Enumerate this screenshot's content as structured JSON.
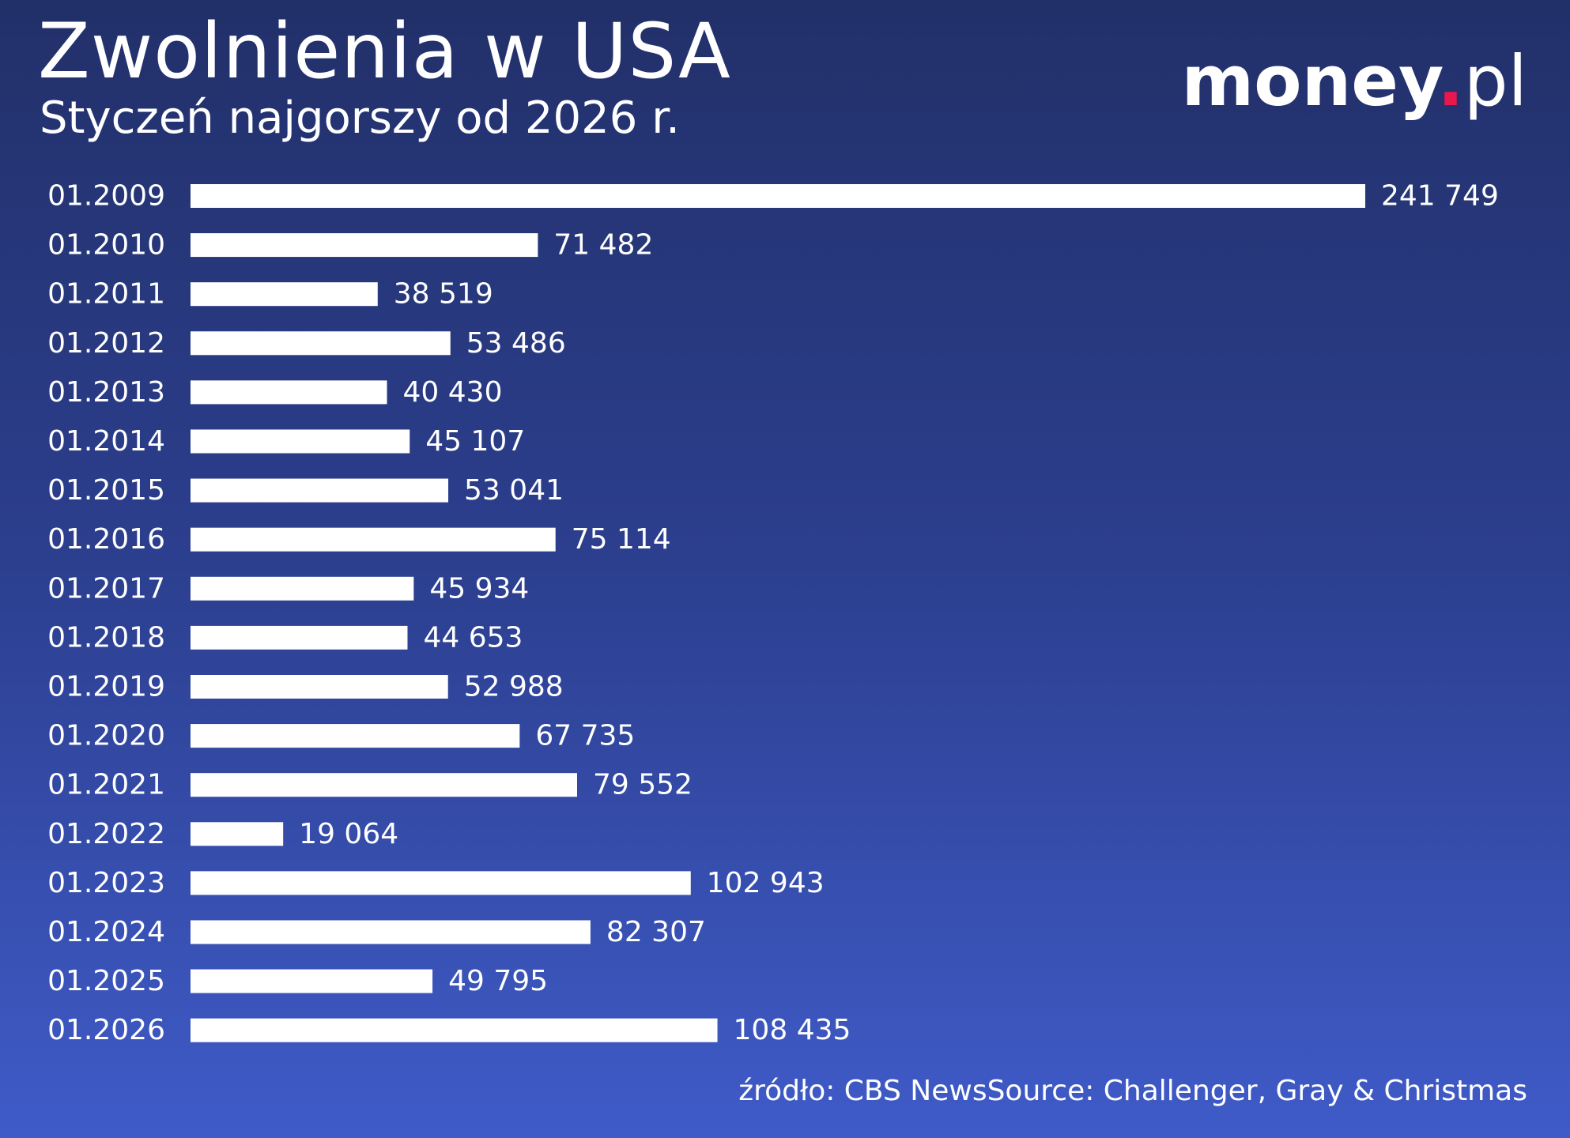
{
  "header": {
    "title": "Zwolnienia w USA",
    "subtitle": "Styczeń najgorszy od 2026 r."
  },
  "logo": {
    "word": "money",
    "dot": ".",
    "tld": "pl"
  },
  "source": "źródło: CBS NewsSource: Challenger, Gray & Christmas",
  "colors": {
    "background_top": "#223069",
    "background_bottom": "#3f5bc8",
    "bar": "#ffffff",
    "logo_dot": "#e8174e"
  },
  "chart_data": {
    "type": "bar",
    "orientation": "horizontal",
    "title": "Zwolnienia w USA",
    "subtitle": "Styczeń najgorszy od 2026 r.",
    "xlabel": "",
    "ylabel": "",
    "xlim": [
      0,
      241749
    ],
    "grid": false,
    "categories": [
      "01.2009",
      "01.2010",
      "01.2011",
      "01.2012",
      "01.2013",
      "01.2014",
      "01.2015",
      "01.2016",
      "01.2017",
      "01.2018",
      "01.2019",
      "01.2020",
      "01.2021",
      "01.2022",
      "01.2023",
      "01.2024",
      "01.2025",
      "01.2026"
    ],
    "values": [
      241749,
      71482,
      38519,
      53486,
      40430,
      45107,
      53041,
      75114,
      45934,
      44653,
      52988,
      67735,
      79552,
      19064,
      102943,
      82307,
      49795,
      108435
    ],
    "value_labels": [
      "241 749",
      "71 482",
      "38 519",
      "53 486",
      "40 430",
      "45 107",
      "53 041",
      "75 114",
      "45 934",
      "44 653",
      "52 988",
      "67 735",
      "79 552",
      "19 064",
      "102 943",
      "82 307",
      "49 795",
      "108 435"
    ]
  }
}
